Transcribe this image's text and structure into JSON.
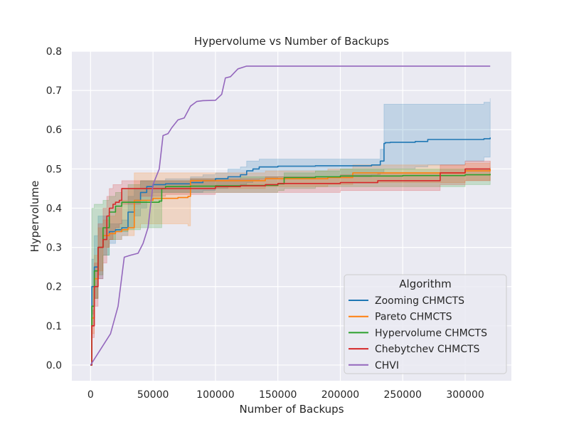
{
  "chart_data": {
    "type": "line",
    "title": "Hypervolume vs Number of Backups",
    "xlabel": "Number of Backups",
    "ylabel": "Hypervolume",
    "xlim": [
      -15000,
      337000
    ],
    "ylim": [
      -0.04,
      0.8
    ],
    "xticks": [
      0,
      50000,
      100000,
      150000,
      200000,
      250000,
      300000
    ],
    "xtick_labels": [
      "0",
      "50000",
      "100000",
      "150000",
      "200000",
      "250000",
      "300000"
    ],
    "yticks": [
      0.0,
      0.1,
      0.2,
      0.3,
      0.4,
      0.5,
      0.6,
      0.7,
      0.8
    ],
    "ytick_labels": [
      "0.0",
      "0.1",
      "0.2",
      "0.3",
      "0.4",
      "0.5",
      "0.6",
      "0.7",
      "0.8"
    ],
    "grid": true,
    "legend": {
      "title": "Algorithm",
      "placement": "lower-right"
    },
    "series": [
      {
        "name": "Zooming CHMCTS",
        "color": "#1f77b4",
        "x": [
          0,
          1000,
          3000,
          6000,
          10000,
          15000,
          20000,
          25000,
          30000,
          35000,
          40000,
          45000,
          50000,
          55000,
          60000,
          65000,
          70000,
          80000,
          90000,
          100000,
          110000,
          120000,
          125000,
          130000,
          135000,
          150000,
          180000,
          200000,
          225000,
          232000,
          235000,
          236000,
          240000,
          260000,
          270000,
          300000,
          315000,
          320000
        ],
        "y": [
          0,
          0.2,
          0.25,
          0.3,
          0.33,
          0.34,
          0.345,
          0.35,
          0.39,
          0.42,
          0.44,
          0.455,
          0.46,
          0.46,
          0.462,
          0.462,
          0.462,
          0.465,
          0.47,
          0.475,
          0.48,
          0.485,
          0.495,
          0.5,
          0.505,
          0.507,
          0.508,
          0.508,
          0.51,
          0.52,
          0.565,
          0.567,
          0.568,
          0.57,
          0.575,
          0.575,
          0.577,
          0.58
        ],
        "lower": [
          0,
          0.13,
          0.17,
          0.22,
          0.28,
          0.31,
          0.32,
          0.33,
          0.35,
          0.38,
          0.4,
          0.42,
          0.44,
          0.44,
          0.44,
          0.44,
          0.44,
          0.44,
          0.445,
          0.45,
          0.455,
          0.46,
          0.465,
          0.47,
          0.475,
          0.48,
          0.48,
          0.48,
          0.485,
          0.49,
          0.5,
          0.5,
          0.5,
          0.505,
          0.51,
          0.52,
          0.53,
          0.53
        ],
        "upper": [
          0,
          0.27,
          0.33,
          0.38,
          0.38,
          0.36,
          0.36,
          0.37,
          0.43,
          0.45,
          0.47,
          0.47,
          0.47,
          0.47,
          0.475,
          0.475,
          0.475,
          0.48,
          0.485,
          0.49,
          0.5,
          0.505,
          0.52,
          0.52,
          0.525,
          0.525,
          0.525,
          0.525,
          0.525,
          0.55,
          0.665,
          0.665,
          0.665,
          0.665,
          0.665,
          0.665,
          0.67,
          0.68
        ]
      },
      {
        "name": "Pareto CHMCTS",
        "color": "#ff7f0e",
        "x": [
          0,
          1000,
          3000,
          6000,
          10000,
          15000,
          20000,
          25000,
          30000,
          35000,
          40000,
          50000,
          60000,
          70000,
          78000,
          80000,
          90000,
          100000,
          120000,
          140000,
          160000,
          190000,
          210000,
          240000,
          270000,
          300000,
          320000
        ],
        "y": [
          0,
          0.12,
          0.22,
          0.3,
          0.33,
          0.335,
          0.34,
          0.345,
          0.35,
          0.42,
          0.42,
          0.425,
          0.425,
          0.427,
          0.43,
          0.47,
          0.47,
          0.47,
          0.47,
          0.475,
          0.475,
          0.478,
          0.49,
          0.49,
          0.49,
          0.495,
          0.5
        ],
        "lower": [
          0,
          0.08,
          0.17,
          0.24,
          0.3,
          0.32,
          0.32,
          0.33,
          0.33,
          0.35,
          0.36,
          0.36,
          0.36,
          0.36,
          0.355,
          0.45,
          0.45,
          0.45,
          0.45,
          0.455,
          0.455,
          0.46,
          0.465,
          0.465,
          0.465,
          0.47,
          0.475
        ],
        "upper": [
          0,
          0.2,
          0.28,
          0.35,
          0.37,
          0.38,
          0.4,
          0.42,
          0.45,
          0.49,
          0.49,
          0.49,
          0.49,
          0.49,
          0.49,
          0.49,
          0.49,
          0.49,
          0.49,
          0.495,
          0.495,
          0.5,
          0.51,
          0.51,
          0.51,
          0.515,
          0.52
        ]
      },
      {
        "name": "Hypervolume CHMCTS",
        "color": "#2ca02c",
        "x": [
          0,
          1000,
          3000,
          6000,
          10000,
          15000,
          20000,
          25000,
          30000,
          40000,
          50000,
          55000,
          57000,
          60000,
          80000,
          100000,
          120000,
          150000,
          155000,
          180000,
          200000,
          250000,
          300000,
          320000
        ],
        "y": [
          0,
          0.15,
          0.24,
          0.3,
          0.35,
          0.39,
          0.405,
          0.415,
          0.415,
          0.415,
          0.415,
          0.418,
          0.45,
          0.455,
          0.456,
          0.457,
          0.458,
          0.462,
          0.478,
          0.48,
          0.482,
          0.483,
          0.485,
          0.487
        ],
        "lower": [
          0,
          0.1,
          0.17,
          0.23,
          0.28,
          0.32,
          0.34,
          0.34,
          0.345,
          0.35,
          0.35,
          0.35,
          0.44,
          0.44,
          0.44,
          0.44,
          0.44,
          0.445,
          0.45,
          0.455,
          0.455,
          0.455,
          0.46,
          0.46
        ],
        "upper": [
          0,
          0.4,
          0.41,
          0.41,
          0.42,
          0.43,
          0.44,
          0.45,
          0.46,
          0.47,
          0.47,
          0.47,
          0.47,
          0.47,
          0.475,
          0.475,
          0.48,
          0.48,
          0.49,
          0.495,
          0.5,
          0.5,
          0.5,
          0.505
        ]
      },
      {
        "name": "Chebytchev CHMCTS",
        "color": "#d62728",
        "x": [
          0,
          1000,
          3000,
          6000,
          10000,
          13000,
          15000,
          18000,
          20000,
          23000,
          25000,
          40000,
          55000,
          60000,
          80000,
          100000,
          120000,
          140000,
          150000,
          200000,
          230000,
          280000,
          300000,
          320000
        ],
        "y": [
          0,
          0.1,
          0.2,
          0.3,
          0.32,
          0.38,
          0.4,
          0.41,
          0.415,
          0.42,
          0.45,
          0.45,
          0.45,
          0.45,
          0.45,
          0.455,
          0.457,
          0.46,
          0.463,
          0.465,
          0.47,
          0.49,
          0.5,
          0.5
        ],
        "lower": [
          0,
          0.07,
          0.15,
          0.22,
          0.26,
          0.3,
          0.32,
          0.34,
          0.35,
          0.36,
          0.41,
          0.43,
          0.43,
          0.435,
          0.435,
          0.44,
          0.44,
          0.44,
          0.44,
          0.445,
          0.445,
          0.46,
          0.47,
          0.47
        ],
        "upper": [
          0,
          0.14,
          0.26,
          0.36,
          0.4,
          0.43,
          0.45,
          0.46,
          0.46,
          0.46,
          0.47,
          0.47,
          0.47,
          0.47,
          0.475,
          0.475,
          0.475,
          0.48,
          0.48,
          0.485,
          0.49,
          0.51,
          0.52,
          0.52
        ]
      },
      {
        "name": "CHVI",
        "color": "#9467bd",
        "x": [
          0,
          16000,
          22000,
          27000,
          32000,
          38000,
          42000,
          46000,
          50000,
          55000,
          58000,
          62000,
          65000,
          70000,
          75000,
          80000,
          85000,
          90000,
          100000,
          105000,
          108000,
          112000,
          118000,
          125000,
          150000,
          200000,
          250000,
          300000,
          320000
        ],
        "y": [
          0,
          0.08,
          0.15,
          0.275,
          0.28,
          0.285,
          0.31,
          0.35,
          0.46,
          0.5,
          0.585,
          0.59,
          0.605,
          0.625,
          0.63,
          0.66,
          0.672,
          0.674,
          0.675,
          0.69,
          0.732,
          0.735,
          0.755,
          0.762,
          0.762,
          0.762,
          0.762,
          0.762,
          0.762
        ]
      }
    ]
  }
}
